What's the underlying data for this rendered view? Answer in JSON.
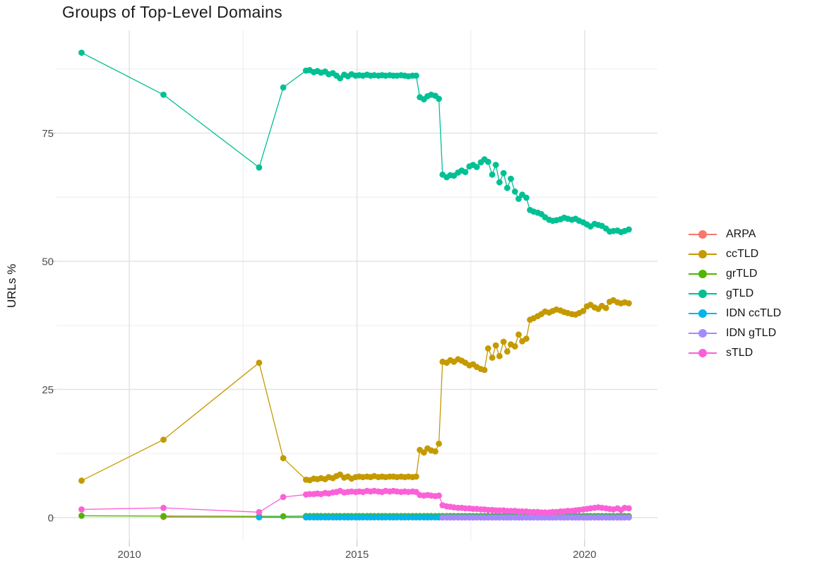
{
  "chart_data": {
    "type": "line",
    "title": "Groups of Top-Level Domains",
    "ylabel": "URLs %",
    "xlabel": "",
    "legend_position": "right",
    "grid": true,
    "colors": {
      "background": "#ffffff",
      "grid_major": "#e4e4e4",
      "grid_minor": "#efefef",
      "tick_mark": "#c9c9c9",
      "axis_text": "#4d4d4d",
      "title_text": "#1c1c1c"
    },
    "x_range": [
      2008.4,
      2021.6
    ],
    "y_range": [
      -4.55,
      95.05
    ],
    "x_ticks": [
      {
        "v": 2010,
        "label": "2010"
      },
      {
        "v": 2015,
        "label": "2015"
      },
      {
        "v": 2020,
        "label": "2020"
      }
    ],
    "y_ticks": [
      {
        "v": 0,
        "label": "0"
      },
      {
        "v": 25,
        "label": "25"
      },
      {
        "v": 50,
        "label": "50"
      },
      {
        "v": 75,
        "label": "75"
      }
    ],
    "x_minor": [
      2012.5,
      2017.5
    ],
    "y_minor": [
      12.5,
      37.5,
      62.5,
      87.5
    ],
    "x_dense": [
      2013.88,
      2013.96,
      2014.05,
      2014.13,
      2014.21,
      2014.3,
      2014.38,
      2014.47,
      2014.55,
      2014.63,
      2014.72,
      2014.8,
      2014.88,
      2014.97,
      2015.05,
      2015.13,
      2015.22,
      2015.3,
      2015.38,
      2015.47,
      2015.55,
      2015.63,
      2015.72,
      2015.8,
      2015.88,
      2015.97,
      2016.05,
      2016.13,
      2016.22,
      2016.3,
      2016.38,
      2016.47,
      2016.55,
      2016.63,
      2016.72,
      2016.8,
      2016.88,
      2016.97,
      2017.05,
      2017.13,
      2017.22,
      2017.3,
      2017.38,
      2017.47,
      2017.55,
      2017.63,
      2017.72,
      2017.8,
      2017.88,
      2017.97,
      2018.05,
      2018.13,
      2018.22,
      2018.3,
      2018.38,
      2018.47,
      2018.55,
      2018.63,
      2018.72,
      2018.8,
      2018.88,
      2018.97,
      2019.05,
      2019.13,
      2019.22,
      2019.3,
      2019.38,
      2019.47,
      2019.55,
      2019.63,
      2019.72,
      2019.8,
      2019.88,
      2019.97,
      2020.05,
      2020.13,
      2020.22,
      2020.3,
      2020.38,
      2020.47,
      2020.55,
      2020.63,
      2020.72,
      2020.8,
      2020.88,
      2020.97
    ],
    "series": [
      {
        "name": "ARPA",
        "color": "#F8766D",
        "pre": [
          [
            2010.75,
            0.1
          ],
          [
            2012.85,
            0.08
          ]
        ],
        "values": [
          0.05,
          0.05,
          0.05,
          0.05,
          0.05,
          0.05,
          0.05,
          0.05,
          0.05,
          0.05,
          0.05,
          0.05,
          0.05,
          0.05,
          0.05,
          0.05,
          0.05,
          0.05,
          0.05,
          0.05,
          0.05,
          0.05,
          0.05,
          0.05,
          0.05,
          0.05,
          0.05,
          0.05,
          0.05,
          0.05,
          0.05,
          0.05,
          0.05,
          0.05,
          0.05,
          0.05,
          0.05,
          0.05,
          0.05,
          0.05,
          0.05,
          0.05,
          0.05,
          0.05,
          0.05,
          0.05,
          0.05,
          0.05,
          0.05,
          0.05,
          0.05,
          0.05,
          0.05,
          0.05,
          0.05,
          0.05,
          0.05,
          0.05,
          0.05,
          0.05,
          0.05,
          0.05,
          0.05,
          0.05,
          0.05,
          0.05,
          0.05,
          0.05,
          0.05,
          0.05,
          0.05,
          0.05,
          0.05,
          0.05,
          0.05,
          0.05,
          0.05,
          0.05,
          0.05,
          0.05,
          0.05,
          0.05,
          0.05,
          0.05,
          0.05,
          0.05
        ]
      },
      {
        "name": "ccTLD",
        "color": "#C49A00",
        "pre": [
          [
            2008.95,
            7.2
          ],
          [
            2010.75,
            15.2
          ],
          [
            2012.85,
            30.2
          ],
          [
            2013.38,
            11.6
          ]
        ],
        "values": [
          7.4,
          7.3,
          7.6,
          7.5,
          7.7,
          7.5,
          7.9,
          7.7,
          8.1,
          8.4,
          7.8,
          8.0,
          7.6,
          7.9,
          8.0,
          7.9,
          8.0,
          7.9,
          8.1,
          7.9,
          8.0,
          7.9,
          8.0,
          8.0,
          7.9,
          8.0,
          7.9,
          8.0,
          7.9,
          8.0,
          13.2,
          12.7,
          13.5,
          13.1,
          12.9,
          14.4,
          30.4,
          30.2,
          30.7,
          30.4,
          30.9,
          30.6,
          30.2,
          29.7,
          29.9,
          29.4,
          29.0,
          28.8,
          33.0,
          31.2,
          33.6,
          31.5,
          34.3,
          32.4,
          33.8,
          33.4,
          35.7,
          34.4,
          34.9,
          38.6,
          38.9,
          39.3,
          39.7,
          40.2,
          40.0,
          40.3,
          40.6,
          40.4,
          40.1,
          39.9,
          39.7,
          39.6,
          39.9,
          40.3,
          41.2,
          41.5,
          41.0,
          40.7,
          41.3,
          40.9,
          42.1,
          42.4,
          42.0,
          41.8,
          42.0,
          41.8
        ]
      },
      {
        "name": "grTLD",
        "color": "#53B400",
        "pre": [
          [
            2008.95,
            0.35
          ],
          [
            2010.75,
            0.3
          ],
          [
            2012.85,
            0.25
          ],
          [
            2013.38,
            0.25
          ]
        ],
        "values": [
          0.3,
          0.3,
          0.3,
          0.3,
          0.3,
          0.3,
          0.3,
          0.3,
          0.3,
          0.3,
          0.3,
          0.3,
          0.3,
          0.3,
          0.3,
          0.3,
          0.3,
          0.3,
          0.3,
          0.3,
          0.3,
          0.3,
          0.3,
          0.3,
          0.3,
          0.3,
          0.3,
          0.3,
          0.3,
          0.3,
          0.3,
          0.3,
          0.3,
          0.3,
          0.3,
          0.3,
          0.3,
          0.3,
          0.3,
          0.3,
          0.3,
          0.3,
          0.3,
          0.3,
          0.3,
          0.3,
          0.3,
          0.3,
          0.3,
          0.3,
          0.3,
          0.3,
          0.3,
          0.3,
          0.3,
          0.3,
          0.3,
          0.3,
          0.3,
          0.3,
          0.3,
          0.3,
          0.3,
          0.3,
          0.3,
          0.3,
          0.3,
          0.3,
          0.3,
          0.3,
          0.3,
          0.3,
          0.3,
          0.3,
          0.3,
          0.3,
          0.3,
          0.3,
          0.3,
          0.3,
          0.3,
          0.3,
          0.3,
          0.3,
          0.3,
          0.3
        ]
      },
      {
        "name": "gTLD",
        "color": "#00C094",
        "pre": [
          [
            2008.95,
            90.7
          ],
          [
            2010.75,
            82.5
          ],
          [
            2012.85,
            68.3
          ],
          [
            2013.38,
            83.9
          ]
        ],
        "values": [
          87.2,
          87.3,
          86.9,
          87.1,
          86.8,
          87.0,
          86.5,
          86.7,
          86.2,
          85.7,
          86.4,
          86.1,
          86.5,
          86.2,
          86.3,
          86.2,
          86.4,
          86.2,
          86.3,
          86.2,
          86.3,
          86.2,
          86.3,
          86.2,
          86.2,
          86.3,
          86.2,
          86.1,
          86.2,
          86.2,
          82.0,
          81.6,
          82.2,
          82.5,
          82.3,
          81.7,
          66.9,
          66.4,
          66.8,
          66.7,
          67.3,
          67.7,
          67.4,
          68.5,
          68.8,
          68.4,
          69.3,
          69.9,
          69.4,
          66.9,
          68.8,
          65.4,
          67.2,
          64.3,
          66.1,
          63.6,
          62.2,
          63.0,
          62.4,
          60.0,
          59.7,
          59.5,
          59.2,
          58.6,
          58.1,
          57.9,
          58.0,
          58.2,
          58.5,
          58.3,
          58.1,
          58.3,
          57.9,
          57.6,
          57.2,
          56.8,
          57.3,
          57.1,
          56.9,
          56.4,
          55.8,
          55.9,
          56.0,
          55.7,
          55.9,
          56.2
        ]
      },
      {
        "name": "IDN ccTLD",
        "color": "#00B6EB",
        "pre": [
          [
            2012.85,
            0.05
          ]
        ],
        "values": [
          0.07,
          0.07,
          0.07,
          0.07,
          0.07,
          0.07,
          0.07,
          0.07,
          0.07,
          0.07,
          0.07,
          0.07,
          0.07,
          0.07,
          0.07,
          0.07,
          0.07,
          0.07,
          0.07,
          0.07,
          0.07,
          0.07,
          0.07,
          0.07,
          0.07,
          0.07,
          0.07,
          0.07,
          0.07,
          0.07,
          0.07,
          0.07,
          0.07,
          0.07,
          0.07,
          0.07,
          0.07,
          0.07,
          0.07,
          0.07,
          0.07,
          0.07,
          0.07,
          0.07,
          0.07,
          0.07,
          0.07,
          0.07,
          0.07,
          0.07,
          0.07,
          0.07,
          0.07,
          0.07,
          0.07,
          0.07,
          0.07,
          0.07,
          0.07,
          0.07,
          0.07,
          0.07,
          0.07,
          0.07,
          0.07,
          0.07,
          0.07,
          0.07,
          0.07,
          0.07,
          0.07,
          0.07,
          0.07,
          0.07,
          0.07,
          0.07,
          0.07,
          0.07,
          0.07,
          0.07,
          0.07,
          0.07,
          0.07,
          0.07,
          0.07,
          0.07
        ]
      },
      {
        "name": "IDN gTLD",
        "color": "#A58AFF",
        "pre": [],
        "values": [
          null,
          null,
          null,
          null,
          null,
          null,
          null,
          null,
          null,
          null,
          null,
          null,
          null,
          null,
          null,
          null,
          null,
          null,
          null,
          null,
          null,
          null,
          null,
          null,
          null,
          null,
          null,
          null,
          null,
          null,
          null,
          null,
          null,
          null,
          null,
          null,
          0.02,
          0.02,
          0.02,
          0.02,
          0.02,
          0.02,
          0.02,
          0.02,
          0.02,
          0.02,
          0.02,
          0.02,
          0.02,
          0.02,
          0.02,
          0.02,
          0.02,
          0.02,
          0.02,
          0.02,
          0.02,
          0.02,
          0.02,
          0.02,
          0.02,
          0.02,
          0.02,
          0.02,
          0.02,
          0.02,
          0.02,
          0.02,
          0.02,
          0.02,
          0.02,
          0.02,
          0.02,
          0.02,
          0.02,
          0.02,
          0.02,
          0.02,
          0.02,
          0.02,
          0.02,
          0.02,
          0.02,
          0.02,
          0.02,
          0.02
        ]
      },
      {
        "name": "sTLD",
        "color": "#FB61D7",
        "pre": [
          [
            2008.95,
            1.6
          ],
          [
            2010.75,
            1.9
          ],
          [
            2012.85,
            1.05
          ],
          [
            2013.38,
            4.0
          ]
        ],
        "values": [
          4.5,
          4.6,
          4.6,
          4.7,
          4.6,
          4.8,
          4.7,
          4.9,
          5.0,
          5.2,
          4.9,
          5.0,
          5.1,
          5.0,
          5.1,
          5.0,
          5.2,
          5.1,
          5.2,
          5.1,
          5.0,
          5.2,
          5.1,
          5.2,
          5.1,
          5.0,
          5.1,
          5.0,
          5.1,
          5.0,
          4.4,
          4.3,
          4.4,
          4.3,
          4.2,
          4.3,
          2.4,
          2.2,
          2.1,
          2.0,
          1.9,
          1.9,
          1.8,
          1.8,
          1.7,
          1.7,
          1.6,
          1.6,
          1.5,
          1.5,
          1.4,
          1.4,
          1.4,
          1.3,
          1.3,
          1.3,
          1.2,
          1.2,
          1.2,
          1.1,
          1.1,
          1.1,
          1.0,
          1.0,
          1.0,
          1.1,
          1.1,
          1.2,
          1.2,
          1.3,
          1.3,
          1.4,
          1.5,
          1.6,
          1.7,
          1.8,
          1.9,
          2.0,
          1.9,
          1.8,
          1.7,
          1.6,
          1.8,
          1.5,
          1.9,
          1.8
        ]
      }
    ]
  }
}
